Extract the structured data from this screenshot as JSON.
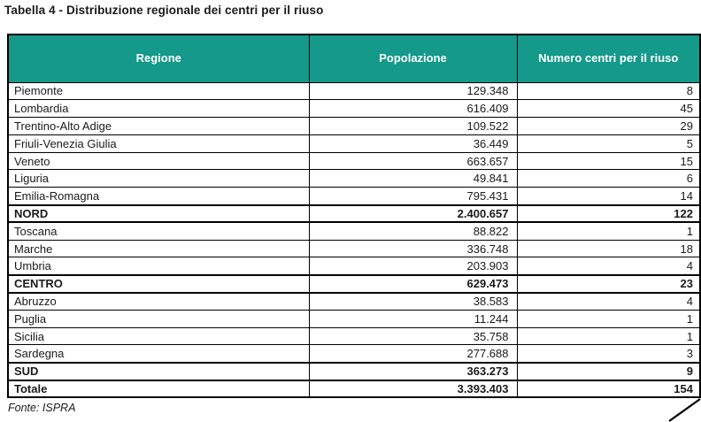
{
  "title": "Tabella 4 - Distribuzione regionale dei centri per il riuso",
  "source": "Fonte: ISPRA",
  "colors": {
    "header_bg": "#14998A",
    "header_text": "#ffffff",
    "border": "#000000"
  },
  "table": {
    "headers": {
      "region": "Regione",
      "population": "Popolazione",
      "centers": "Numero centri per il riuso"
    },
    "rows": [
      {
        "region": "Piemonte",
        "population": "129.348",
        "centers": "8",
        "bold": false
      },
      {
        "region": "Lombardia",
        "population": "616.409",
        "centers": "45",
        "bold": false
      },
      {
        "region": "Trentino-Alto Adige",
        "population": "109.522",
        "centers": "29",
        "bold": false
      },
      {
        "region": "Friuli-Venezia Giulia",
        "population": "36.449",
        "centers": "5",
        "bold": false
      },
      {
        "region": "Veneto",
        "population": "663.657",
        "centers": "15",
        "bold": false
      },
      {
        "region": "Liguria",
        "population": "49.841",
        "centers": "6",
        "bold": false
      },
      {
        "region": "Emilia-Romagna",
        "population": "795.431",
        "centers": "14",
        "bold": false
      },
      {
        "region": "NORD",
        "population": "2.400.657",
        "centers": "122",
        "bold": true
      },
      {
        "region": "Toscana",
        "population": "88.822",
        "centers": "1",
        "bold": false
      },
      {
        "region": "Marche",
        "population": "336.748",
        "centers": "18",
        "bold": false
      },
      {
        "region": "Umbria",
        "population": "203.903",
        "centers": "4",
        "bold": false
      },
      {
        "region": "CENTRO",
        "population": "629.473",
        "centers": "23",
        "bold": true
      },
      {
        "region": "Abruzzo",
        "population": "38.583",
        "centers": "4",
        "bold": false
      },
      {
        "region": "Puglia",
        "population": "11.244",
        "centers": "1",
        "bold": false
      },
      {
        "region": "Sicilia",
        "population": "35.758",
        "centers": "1",
        "bold": false
      },
      {
        "region": "Sardegna",
        "population": "277.688",
        "centers": "3",
        "bold": false
      },
      {
        "region": "SUD",
        "population": "363.273",
        "centers": "9",
        "bold": true
      },
      {
        "region": "Totale",
        "population": "3.393.403",
        "centers": "154",
        "bold": true
      }
    ]
  }
}
